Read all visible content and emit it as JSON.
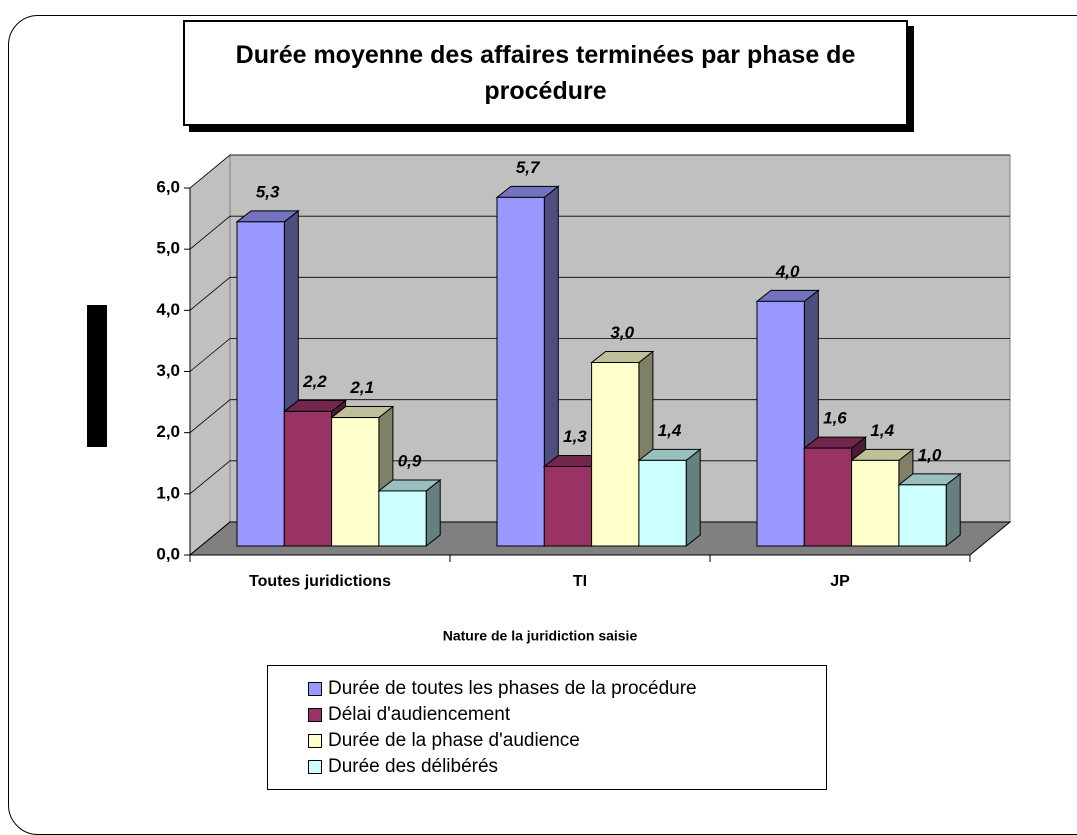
{
  "chart_data": {
    "type": "bar",
    "title": "Durée moyenne des affaires terminées par phase de procédure",
    "xlabel": "Nature de la juridiction saisie",
    "categories": [
      "Toutes juridictions",
      "TI",
      "JP"
    ],
    "series": [
      {
        "name": "Durée de toutes les phases de la procédure",
        "color": "#9999ff",
        "values": [
          5.3,
          5.7,
          4.0
        ],
        "value_labels": [
          "5,3",
          "5,7",
          "4,0"
        ]
      },
      {
        "name": "Délai d'audiencement",
        "color": "#993366",
        "values": [
          2.2,
          1.3,
          1.6
        ],
        "value_labels": [
          "2,2",
          "1,3",
          "1,6"
        ]
      },
      {
        "name": "Durée de la phase d'audience",
        "color": "#ffffcc",
        "values": [
          2.1,
          3.0,
          1.4
        ],
        "value_labels": [
          "2,1",
          "3,0",
          "1,4"
        ]
      },
      {
        "name": "Durée des délibérés",
        "color": "#ccffff",
        "values": [
          0.9,
          1.4,
          1.0
        ],
        "value_labels": [
          "0,9",
          "1,4",
          "1,0"
        ]
      }
    ],
    "ylim": [
      0,
      6
    ],
    "yticks": [
      {
        "value": 0,
        "label": "0,0"
      },
      {
        "value": 1,
        "label": "1,0"
      },
      {
        "value": 2,
        "label": "2,0"
      },
      {
        "value": 3,
        "label": "3,0"
      },
      {
        "value": 4,
        "label": "4,0"
      },
      {
        "value": 5,
        "label": "5,0"
      },
      {
        "value": 6,
        "label": "6,0"
      }
    ],
    "grid": true
  }
}
